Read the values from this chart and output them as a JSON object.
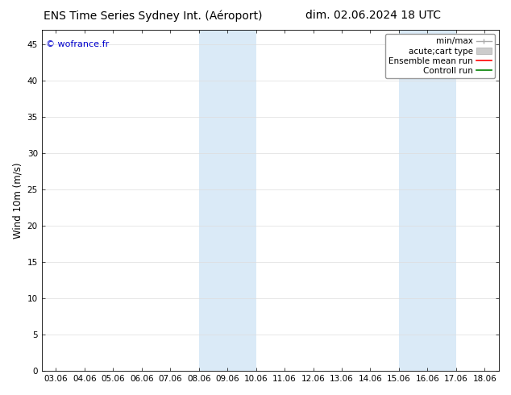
{
  "title_left": "ENS Time Series Sydney Int. (Aéroport)",
  "title_right": "dim. 02.06.2024 18 UTC",
  "ylabel": "Wind 10m (m/s)",
  "watermark": "© wofrance.fr",
  "x_tick_labels": [
    "03.06",
    "04.06",
    "05.06",
    "06.06",
    "07.06",
    "08.06",
    "09.06",
    "10.06",
    "11.06",
    "12.06",
    "13.06",
    "14.06",
    "15.06",
    "16.06",
    "17.06",
    "18.06"
  ],
  "x_tick_positions": [
    0,
    1,
    2,
    3,
    4,
    5,
    6,
    7,
    8,
    9,
    10,
    11,
    12,
    13,
    14,
    15
  ],
  "ylim": [
    0,
    47
  ],
  "yticks": [
    0,
    5,
    10,
    15,
    20,
    25,
    30,
    35,
    40,
    45
  ],
  "shaded_regions": [
    {
      "x_start": 5,
      "x_end": 7
    },
    {
      "x_start": 12,
      "x_end": 14
    }
  ],
  "shaded_color": "#daeaf7",
  "bg_color": "#ffffff",
  "plot_bg_color": "#ffffff",
  "spine_color": "#000000",
  "grid_color": "#dddddd",
  "watermark_color": "#0000cc",
  "title_fontsize": 10,
  "label_fontsize": 8.5,
  "tick_fontsize": 7.5,
  "legend_fontsize": 7.5
}
